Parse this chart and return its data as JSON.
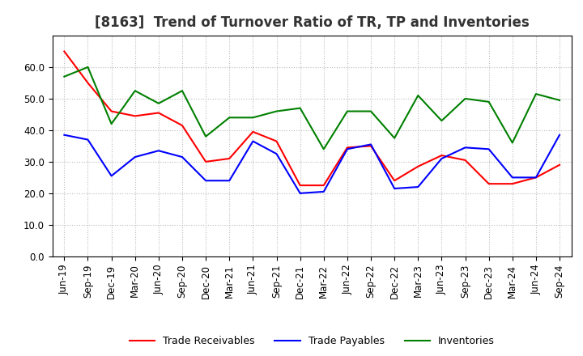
{
  "title": "[8163]  Trend of Turnover Ratio of TR, TP and Inventories",
  "x_labels": [
    "Jun-19",
    "Sep-19",
    "Dec-19",
    "Mar-20",
    "Jun-20",
    "Sep-20",
    "Dec-20",
    "Mar-21",
    "Jun-21",
    "Sep-21",
    "Dec-21",
    "Mar-22",
    "Jun-22",
    "Sep-22",
    "Dec-22",
    "Mar-23",
    "Jun-23",
    "Sep-23",
    "Dec-23",
    "Mar-24",
    "Jun-24",
    "Sep-24"
  ],
  "trade_receivables": [
    65.0,
    55.0,
    46.0,
    44.5,
    45.5,
    41.5,
    30.0,
    31.0,
    39.5,
    36.5,
    22.5,
    22.5,
    34.5,
    35.0,
    24.0,
    28.5,
    32.0,
    30.5,
    23.0,
    23.0,
    25.0,
    29.0
  ],
  "trade_payables": [
    38.5,
    37.0,
    25.5,
    31.5,
    33.5,
    31.5,
    24.0,
    24.0,
    36.5,
    32.5,
    20.0,
    20.5,
    34.0,
    35.5,
    21.5,
    22.0,
    31.0,
    34.5,
    34.0,
    25.0,
    25.0,
    38.5
  ],
  "inventories": [
    57.0,
    60.0,
    42.0,
    52.5,
    48.5,
    52.5,
    38.0,
    44.0,
    44.0,
    46.0,
    47.0,
    34.0,
    46.0,
    46.0,
    37.5,
    51.0,
    43.0,
    50.0,
    49.0,
    36.0,
    51.5,
    49.5
  ],
  "tr_color": "#FF0000",
  "tp_color": "#0000FF",
  "inv_color": "#008000",
  "ylim": [
    0,
    70
  ],
  "yticks": [
    0.0,
    10.0,
    20.0,
    30.0,
    40.0,
    50.0,
    60.0
  ],
  "legend_labels": [
    "Trade Receivables",
    "Trade Payables",
    "Inventories"
  ],
  "background_color": "#ffffff",
  "grid_color": "#bbbbbb",
  "title_fontsize": 12,
  "tick_fontsize": 8.5
}
